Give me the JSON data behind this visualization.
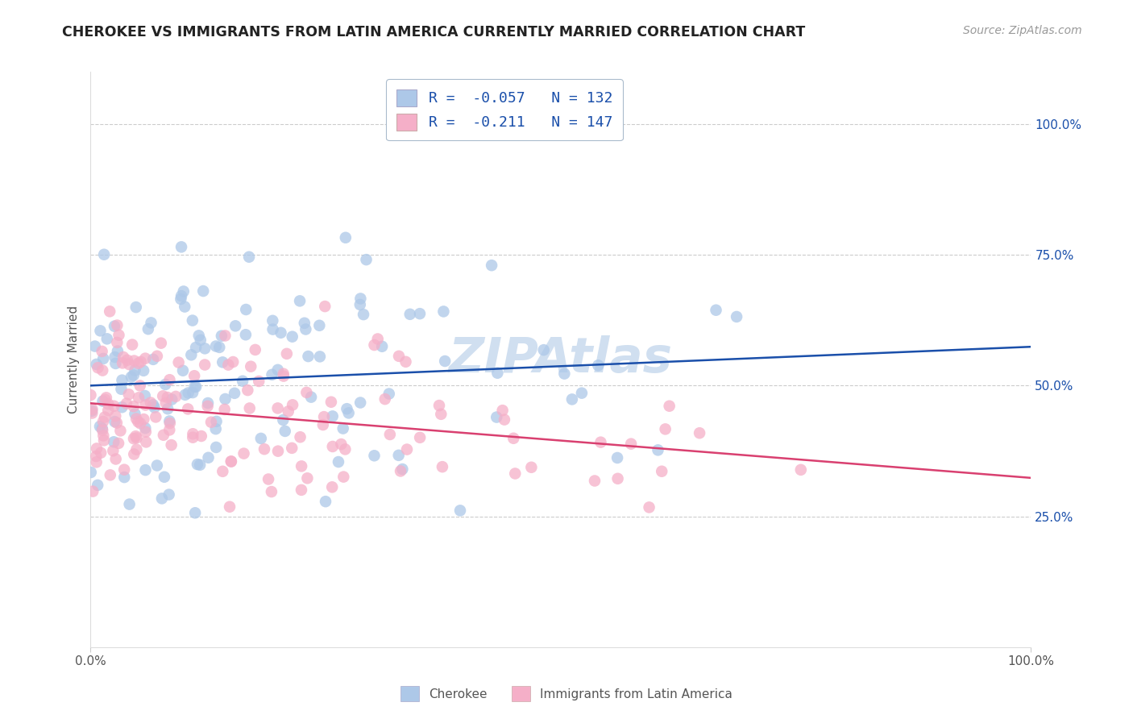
{
  "title": "CHEROKEE VS IMMIGRANTS FROM LATIN AMERICA CURRENTLY MARRIED CORRELATION CHART",
  "source": "Source: ZipAtlas.com",
  "ylabel": "Currently Married",
  "legend_label1": "Cherokee",
  "legend_label2": "Immigrants from Latin America",
  "R1": -0.057,
  "N1": 132,
  "R2": -0.211,
  "N2": 147,
  "color1": "#adc8e8",
  "color2": "#f5afc8",
  "line_color1": "#1a4faa",
  "line_color2": "#d94070",
  "background_color": "#ffffff",
  "grid_color": "#cccccc",
  "title_color": "#222222",
  "source_color": "#999999",
  "legend_text_color": "#1a4faa",
  "watermark_color": "#d0dff0",
  "xlim": [
    0,
    1
  ],
  "ylim": [
    0.0,
    1.1
  ],
  "ytick_vals": [
    0.25,
    0.5,
    0.75,
    1.0
  ],
  "ytick_labels": [
    "25.0%",
    "50.0%",
    "75.0%",
    "100.0%"
  ],
  "xtick_vals": [
    0.0,
    1.0
  ],
  "xtick_labels": [
    "0.0%",
    "100.0%"
  ]
}
